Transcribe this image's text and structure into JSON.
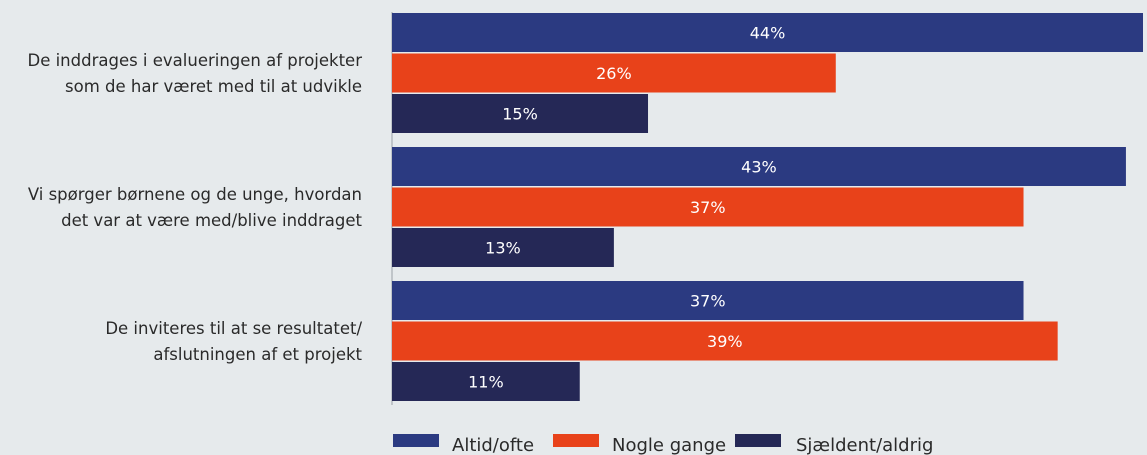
{
  "chart_data": {
    "type": "bar",
    "orientation": "horizontal",
    "categories": [
      [
        "De inddrages i evalueringen af projekter",
        "som de har været med til at udvikle"
      ],
      [
        "Vi spørger børnene og de unge, hvordan",
        "det var at være med/blive inddraget"
      ],
      [
        "De inviteres til at se resultatet/",
        "afslutningen af et projekt"
      ]
    ],
    "series": [
      {
        "name": "Altid/ofte",
        "color": "#2b3a81",
        "values": [
          44,
          43,
          37
        ]
      },
      {
        "name": "Nogle gange",
        "color": "#e8421a",
        "values": [
          26,
          37,
          39
        ]
      },
      {
        "name": "Sjældent/aldrig",
        "color": "#252856",
        "values": [
          15,
          13,
          11
        ]
      }
    ],
    "value_suffix": "%",
    "xlim": [
      0,
      44
    ],
    "legend_position": "bottom",
    "grid": false,
    "background_color": "#e6eaec",
    "label_color": "#ffffff",
    "category_label_color": "#2a2a2a"
  }
}
